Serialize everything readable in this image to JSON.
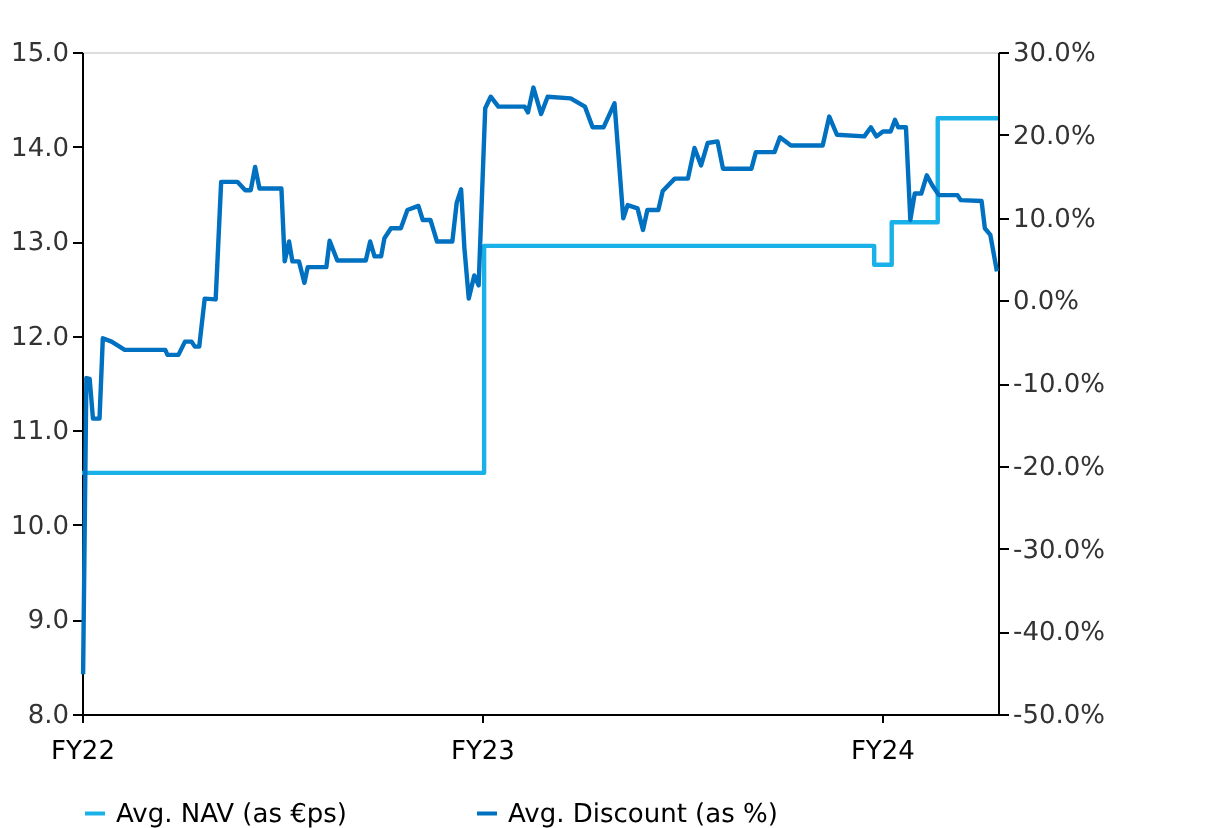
{
  "chart_data": {
    "type": "line",
    "xlim": [
      "2022-01-01",
      "2024-04-16"
    ],
    "xticks": [
      {
        "value": "2022-01-01",
        "label": "FY22"
      },
      {
        "value": "2023-01-01",
        "label": "FY23"
      },
      {
        "value": "2024-01-01",
        "label": "FY24"
      }
    ],
    "ylim": [
      8,
      15
    ],
    "yticks": [
      {
        "value": 8,
        "label": "8.0"
      },
      {
        "value": 9,
        "label": "9.0"
      },
      {
        "value": 10,
        "label": "10.0"
      },
      {
        "value": 11,
        "label": "11.0"
      },
      {
        "value": 12,
        "label": "12.0"
      },
      {
        "value": 13,
        "label": "13.0"
      },
      {
        "value": 14,
        "label": "14.0"
      },
      {
        "value": 15,
        "label": "15.0"
      }
    ],
    "y2lim": [
      -50,
      30
    ],
    "y2ticks": [
      {
        "value": -50,
        "label": "-50.0%"
      },
      {
        "value": -40,
        "label": "-40.0%"
      },
      {
        "value": -30,
        "label": "-30.0%"
      },
      {
        "value": -20,
        "label": "-20.0%"
      },
      {
        "value": -10,
        "label": "-10.0%"
      },
      {
        "value": 0,
        "label": "0.0%"
      },
      {
        "value": 10,
        "label": "10.0%"
      },
      {
        "value": 20,
        "label": "20.0%"
      },
      {
        "value": 30,
        "label": "30.0%"
      }
    ],
    "grid": false,
    "legend": "bottom",
    "series": [
      {
        "name": "Avg. NAV (as €ps)",
        "type": "step",
        "color": "#1ab0e8",
        "x": [
          "2022-01-01",
          "2023-01-03",
          "2023-12-25",
          "2024-01-10",
          "2024-02-21",
          "2024-04-16"
        ],
        "values": [
          10.55,
          12.95,
          12.75,
          13.2,
          14.3,
          14.3
        ]
      },
      {
        "name": "Avg. Discount (as %)",
        "type": "line",
        "axis": "y2",
        "color": "#0070c0",
        "x": [
          "2022-01-02",
          "2022-01-05",
          "2022-01-08",
          "2022-01-11",
          "2022-01-17",
          "2022-01-20",
          "2022-01-28",
          "2022-02-09",
          "2022-03-18",
          "2022-03-20",
          "2022-03-30",
          "2022-04-05",
          "2022-04-11",
          "2022-04-14",
          "2022-04-18",
          "2022-04-23",
          "2022-05-03",
          "2022-05-08",
          "2022-05-23",
          "2022-05-30",
          "2022-06-04",
          "2022-06-08",
          "2022-06-12",
          "2022-07-02",
          "2022-07-05",
          "2022-07-09",
          "2022-07-12",
          "2022-07-18",
          "2022-07-23",
          "2022-07-26",
          "2022-08-12",
          "2022-08-15",
          "2022-08-22",
          "2022-09-17",
          "2022-09-21",
          "2022-09-25",
          "2022-10-01",
          "2022-10-04",
          "2022-10-10",
          "2022-10-19",
          "2022-10-25",
          "2022-11-04",
          "2022-11-08",
          "2022-11-15",
          "2022-11-21",
          "2022-12-05",
          "2022-12-09",
          "2022-12-13",
          "2022-12-16",
          "2022-12-20",
          "2022-12-25",
          "2022-12-29",
          "2023-01-04",
          "2023-01-09",
          "2023-01-16",
          "2023-02-09",
          "2023-02-12",
          "2023-02-17",
          "2023-02-24",
          "2023-03-02",
          "2023-03-23",
          "2023-04-05",
          "2023-04-12",
          "2023-04-22",
          "2023-05-02",
          "2023-05-10",
          "2023-05-14",
          "2023-05-23",
          "2023-05-28",
          "2023-06-01",
          "2023-06-11",
          "2023-06-15",
          "2023-06-26",
          "2023-07-08",
          "2023-07-14",
          "2023-07-20",
          "2023-07-26",
          "2023-08-04",
          "2023-08-09",
          "2023-09-04",
          "2023-09-08",
          "2023-09-25",
          "2023-09-30",
          "2023-10-10",
          "2023-11-08",
          "2023-11-14",
          "2023-11-21",
          "2023-12-16",
          "2023-12-22",
          "2023-12-27",
          "2024-01-02",
          "2024-01-09",
          "2024-01-13",
          "2024-01-16",
          "2024-01-23",
          "2024-01-27",
          "2024-01-31",
          "2024-02-06",
          "2024-02-11",
          "2024-02-16",
          "2024-02-22",
          "2024-03-10",
          "2024-03-13",
          "2024-04-01",
          "2024-04-04",
          "2024-04-09",
          "2024-04-15"
        ],
        "values": [
          -45.2,
          -9.4,
          -9.5,
          -14.3,
          -14.3,
          -4.6,
          -5.0,
          -6.0,
          -6.0,
          -6.6,
          -6.6,
          -5.0,
          -5.0,
          -5.6,
          -5.6,
          0.2,
          0.1,
          14.3,
          14.3,
          13.3,
          13.3,
          16.1,
          13.5,
          13.5,
          4.7,
          7.1,
          4.7,
          4.7,
          2.1,
          4.0,
          4.0,
          7.2,
          4.8,
          4.8,
          7.1,
          5.3,
          5.3,
          7.5,
          8.7,
          8.7,
          10.9,
          11.4,
          9.7,
          9.7,
          7.1,
          7.1,
          11.8,
          13.4,
          6.3,
          0.2,
          3.0,
          1.8,
          23.2,
          24.6,
          23.4,
          23.4,
          22.7,
          25.7,
          22.5,
          24.6,
          24.4,
          23.4,
          20.9,
          20.9,
          23.8,
          9.9,
          11.5,
          11.1,
          8.5,
          10.9,
          10.9,
          13.2,
          14.7,
          14.7,
          18.4,
          16.3,
          19.0,
          19.2,
          15.9,
          15.9,
          17.9,
          17.9,
          19.7,
          18.7,
          18.7,
          22.2,
          20.0,
          19.8,
          20.9,
          19.8,
          20.4,
          20.4,
          21.8,
          20.9,
          20.9,
          9.7,
          12.9,
          12.9,
          15.1,
          13.9,
          12.7,
          12.7,
          12.1,
          12.0,
          8.7,
          7.9,
          3.5
        ]
      }
    ]
  }
}
